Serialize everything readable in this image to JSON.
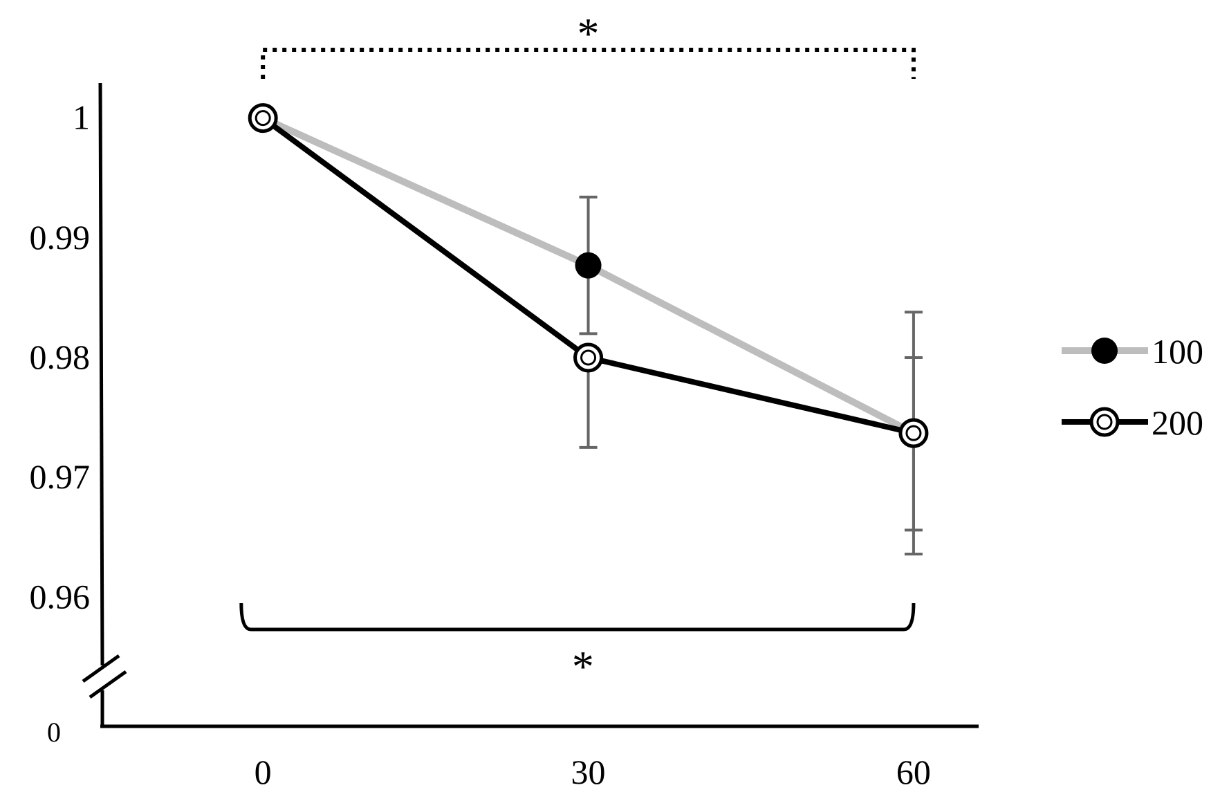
{
  "chart_data": {
    "type": "line",
    "title": "",
    "xlabel": "",
    "ylabel": "",
    "x": [
      0,
      30,
      60
    ],
    "x_tick_labels": [
      "0",
      "30",
      "60"
    ],
    "y_tick_values": [
      0.96,
      0.97,
      0.98,
      0.99,
      1
    ],
    "y_tick_labels": [
      "0.96",
      "0.97",
      "0.98",
      "0.99",
      "1"
    ],
    "y_break_label": "0",
    "ylim": [
      0.955,
      1.0035
    ],
    "xlim": [
      -15,
      66
    ],
    "axis_break": true,
    "grid": false,
    "legend_position": "right",
    "series": [
      {
        "name": "100",
        "color": "#bdbdbd",
        "marker": "filled-black",
        "values": [
          1.0,
          0.9877,
          0.9737
        ],
        "error_upper": [
          1.0,
          0.9934,
          0.9838
        ],
        "error_lower": [
          1.0,
          0.982,
          0.9636
        ]
      },
      {
        "name": "200",
        "color": "#000000",
        "marker": "open-circle",
        "values": [
          1.0,
          0.98,
          0.9737
        ],
        "error_upper": [
          1.0,
          0.98,
          0.98
        ],
        "error_lower": [
          1.0,
          0.9725,
          0.9656
        ]
      }
    ],
    "annotations": [
      {
        "text": "*",
        "style": "dotted-bracket",
        "x_from": 0,
        "x_to": 60,
        "position": "top"
      },
      {
        "text": "*",
        "style": "solid-bracket",
        "x_from": -2,
        "x_to": 60,
        "position": "bottom"
      }
    ]
  }
}
